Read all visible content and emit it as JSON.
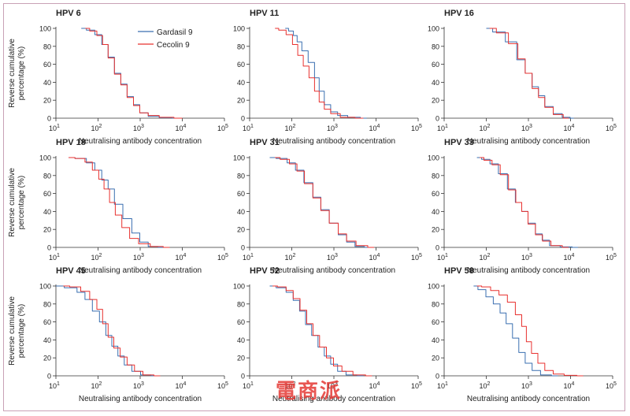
{
  "colors": {
    "gardasil": "#3a6fb0",
    "cecolin": "#e8312f"
  },
  "shared": {
    "ylabel_line1": "Reverse cumulative",
    "ylabel_line2": "percentage (%)",
    "xlabel": "Neutralising antibody concentration",
    "y_ticks": [
      "0",
      "20",
      "40",
      "60",
      "80",
      "100"
    ],
    "x_tick_base": "10",
    "x_tick_exps": [
      "1",
      "2",
      "3",
      "4",
      "5"
    ]
  },
  "watermark": "電商派",
  "chart_data": [
    {
      "type": "line",
      "title": "HPV 6",
      "xscale": "log",
      "xlim": [
        10,
        100000
      ],
      "ylim": [
        0,
        100
      ],
      "legend": {
        "placement": "top-right",
        "entries": [
          "Gardasil 9",
          "Cecolin 9"
        ]
      },
      "series": [
        {
          "name": "Gardasil 9",
          "x": [
            40,
            70,
            100,
            150,
            200,
            300,
            400,
            600,
            800,
            1200,
            2000,
            4000,
            8000
          ],
          "y": [
            100,
            98,
            93,
            82,
            68,
            50,
            38,
            24,
            15,
            6,
            2,
            0.5,
            0
          ]
        },
        {
          "name": "Cecolin 9",
          "x": [
            50,
            80,
            110,
            150,
            200,
            300,
            400,
            600,
            800,
            1200,
            2000,
            4000,
            10000
          ],
          "y": [
            100,
            97,
            92,
            82,
            67,
            49,
            37,
            23,
            14,
            6,
            3,
            1,
            0
          ]
        }
      ]
    },
    {
      "type": "line",
      "title": "HPV 11",
      "xscale": "log",
      "xlim": [
        10,
        100000
      ],
      "ylim": [
        0,
        100
      ],
      "series": [
        {
          "name": "Gardasil 9",
          "x": [
            70,
            100,
            120,
            150,
            200,
            300,
            400,
            500,
            700,
            1000,
            1500,
            3000,
            6000
          ],
          "y": [
            100,
            97,
            92,
            85,
            75,
            62,
            45,
            30,
            15,
            7,
            3,
            1,
            0
          ]
        },
        {
          "name": "Cecolin 9",
          "x": [
            40,
            60,
            90,
            120,
            160,
            220,
            300,
            400,
            500,
            700,
            1000,
            2000,
            5000
          ],
          "y": [
            100,
            98,
            93,
            82,
            70,
            58,
            45,
            30,
            18,
            10,
            5,
            1,
            0
          ]
        }
      ]
    },
    {
      "type": "line",
      "title": "HPV 16",
      "xscale": "log",
      "xlim": [
        10,
        100000
      ],
      "ylim": [
        0,
        100
      ],
      "series": [
        {
          "name": "Gardasil 9",
          "x": [
            100,
            200,
            400,
            700,
            1000,
            1500,
            2000,
            3000,
            5000,
            8000,
            12000
          ],
          "y": [
            100,
            96,
            85,
            65,
            50,
            35,
            25,
            13,
            5,
            1,
            0
          ]
        },
        {
          "name": "Cecolin 9",
          "x": [
            120,
            250,
            450,
            700,
            1000,
            1500,
            2000,
            3000,
            5000,
            9000
          ],
          "y": [
            100,
            95,
            83,
            66,
            50,
            33,
            23,
            12,
            4,
            0
          ]
        }
      ]
    },
    {
      "type": "line",
      "title": "HPV 18",
      "xscale": "log",
      "xlim": [
        10,
        100000
      ],
      "ylim": [
        0,
        100
      ],
      "series": [
        {
          "name": "Gardasil 9",
          "x": [
            20,
            40,
            70,
            100,
            150,
            200,
            300,
            500,
            800,
            1200,
            2000,
            3500
          ],
          "y": [
            100,
            99,
            94,
            86,
            75,
            65,
            48,
            32,
            16,
            6,
            1,
            0
          ]
        },
        {
          "name": "Cecolin 9",
          "x": [
            20,
            40,
            60,
            90,
            120,
            160,
            220,
            300,
            450,
            700,
            1200,
            2500,
            5000
          ],
          "y": [
            100,
            99,
            95,
            86,
            76,
            65,
            50,
            36,
            22,
            10,
            4,
            1,
            0
          ]
        }
      ]
    },
    {
      "type": "line",
      "title": "HPV 31",
      "xscale": "log",
      "xlim": [
        10,
        100000
      ],
      "ylim": [
        0,
        100
      ],
      "series": [
        {
          "name": "Gardasil 9",
          "x": [
            30,
            60,
            100,
            150,
            250,
            400,
            600,
            1000,
            1600,
            2500,
            4000,
            7000
          ],
          "y": [
            100,
            99,
            94,
            86,
            72,
            56,
            42,
            27,
            14,
            6,
            1,
            0
          ]
        },
        {
          "name": "Cecolin 9",
          "x": [
            40,
            70,
            110,
            160,
            250,
            400,
            600,
            1000,
            1600,
            2500,
            4500,
            9000
          ],
          "y": [
            100,
            98,
            93,
            85,
            71,
            55,
            41,
            27,
            15,
            7,
            2,
            0
          ]
        }
      ]
    },
    {
      "type": "line",
      "title": "HPV 33",
      "xscale": "log",
      "xlim": [
        10,
        100000
      ],
      "ylim": [
        0,
        100
      ],
      "series": [
        {
          "name": "Gardasil 9",
          "x": [
            60,
            100,
            150,
            250,
            400,
            600,
            800,
            1200,
            1800,
            2500,
            4000,
            8000,
            15000
          ],
          "y": [
            100,
            98,
            93,
            82,
            65,
            50,
            40,
            27,
            15,
            8,
            2,
            0.5,
            0
          ]
        },
        {
          "name": "Cecolin 9",
          "x": [
            70,
            110,
            170,
            270,
            420,
            600,
            800,
            1200,
            1800,
            2600,
            4500,
            9000
          ],
          "y": [
            100,
            97,
            92,
            81,
            64,
            50,
            40,
            26,
            14,
            7,
            2,
            0
          ]
        }
      ]
    },
    {
      "type": "line",
      "title": "HPV 45",
      "xscale": "log",
      "xlim": [
        10,
        100000
      ],
      "ylim": [
        0,
        100
      ],
      "series": [
        {
          "name": "Gardasil 9",
          "x": [
            10,
            25,
            40,
            60,
            90,
            130,
            180,
            250,
            350,
            500,
            800,
            1300,
            2500
          ],
          "y": [
            100,
            98,
            93,
            85,
            72,
            60,
            45,
            33,
            22,
            12,
            5,
            1,
            0
          ]
        },
        {
          "name": "Cecolin 9",
          "x": [
            15,
            30,
            50,
            80,
            110,
            150,
            200,
            280,
            400,
            600,
            900,
            1500,
            3000
          ],
          "y": [
            100,
            99,
            94,
            85,
            74,
            58,
            43,
            31,
            21,
            12,
            5,
            1,
            0
          ]
        }
      ]
    },
    {
      "type": "line",
      "title": "HPV 52",
      "xscale": "log",
      "xlim": [
        10,
        100000
      ],
      "ylim": [
        0,
        100
      ],
      "series": [
        {
          "name": "Gardasil 9",
          "x": [
            30,
            60,
            90,
            130,
            180,
            250,
            350,
            500,
            700,
            1000,
            1500,
            2500,
            5000
          ],
          "y": [
            100,
            98,
            93,
            84,
            72,
            57,
            45,
            32,
            22,
            13,
            5,
            1,
            0
          ]
        },
        {
          "name": "Cecolin 9",
          "x": [
            35,
            60,
            90,
            130,
            190,
            270,
            380,
            550,
            800,
            1200,
            2000,
            4000,
            8000
          ],
          "y": [
            100,
            99,
            95,
            86,
            73,
            58,
            45,
            32,
            20,
            11,
            5,
            1,
            0
          ]
        }
      ]
    },
    {
      "type": "line",
      "title": "HPV 58",
      "xscale": "log",
      "xlim": [
        10,
        100000
      ],
      "ylim": [
        0,
        100
      ],
      "series": [
        {
          "name": "Gardasil 9",
          "x": [
            50,
            80,
            120,
            180,
            250,
            350,
            500,
            700,
            1000,
            1500,
            2500,
            5000
          ],
          "y": [
            100,
            96,
            88,
            80,
            70,
            58,
            42,
            26,
            14,
            6,
            1,
            0
          ]
        },
        {
          "name": "Cecolin 9",
          "x": [
            60,
            100,
            160,
            250,
            400,
            600,
            800,
            1000,
            1400,
            2000,
            3000,
            5000,
            10000,
            20000
          ],
          "y": [
            100,
            99,
            95,
            90,
            82,
            68,
            55,
            38,
            25,
            14,
            6,
            2,
            0.5,
            0
          ]
        }
      ]
    }
  ]
}
